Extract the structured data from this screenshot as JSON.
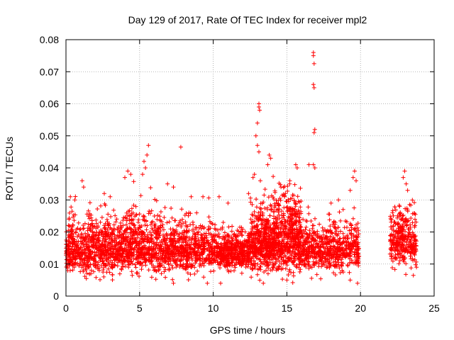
{
  "chart_data": {
    "type": "scatter",
    "title": "Day 129 of 2017, Rate Of TEC Index for receiver mpl2",
    "xlabel": "GPS time / hours",
    "ylabel": "ROTI / TECUs",
    "xlim": [
      0,
      25
    ],
    "ylim": [
      0,
      0.08
    ],
    "xticks": [
      0,
      5,
      10,
      15,
      20,
      25
    ],
    "xtick_labels": [
      "0",
      "5",
      "10",
      "15",
      "20",
      "25"
    ],
    "yticks": [
      0,
      0.01,
      0.02,
      0.03,
      0.04,
      0.05,
      0.06,
      0.07,
      0.08
    ],
    "ytick_labels": [
      "0",
      "0.01",
      "0.02",
      "0.03",
      "0.04",
      "0.05",
      "0.06",
      "0.07",
      "0.08"
    ],
    "grid": true,
    "marker": "+",
    "marker_color": "#ff0000",
    "data_gap_hours": [
      19.9,
      22.0
    ],
    "density_profile": {
      "segments": [
        {
          "x_range": [
            0.0,
            4.0
          ],
          "median": 0.014,
          "spread": 0.006,
          "count": 800
        },
        {
          "x_range": [
            4.0,
            6.5
          ],
          "median": 0.015,
          "spread": 0.007,
          "count": 500
        },
        {
          "x_range": [
            6.5,
            10.5
          ],
          "median": 0.014,
          "spread": 0.005,
          "count": 700
        },
        {
          "x_range": [
            10.5,
            12.5
          ],
          "median": 0.013,
          "spread": 0.004,
          "count": 450
        },
        {
          "x_range": [
            12.5,
            14.0
          ],
          "median": 0.016,
          "spread": 0.007,
          "count": 450
        },
        {
          "x_range": [
            14.0,
            16.0
          ],
          "median": 0.017,
          "spread": 0.008,
          "count": 600
        },
        {
          "x_range": [
            16.0,
            19.9
          ],
          "median": 0.014,
          "spread": 0.005,
          "count": 650
        },
        {
          "x_range": [
            22.0,
            23.8
          ],
          "median": 0.017,
          "spread": 0.006,
          "count": 350
        }
      ]
    },
    "notable_points": [
      {
        "x": 16.8,
        "y": 0.076
      },
      {
        "x": 16.8,
        "y": 0.075
      },
      {
        "x": 16.85,
        "y": 0.0725
      },
      {
        "x": 16.8,
        "y": 0.066
      },
      {
        "x": 16.85,
        "y": 0.065
      },
      {
        "x": 16.9,
        "y": 0.052
      },
      {
        "x": 16.85,
        "y": 0.051
      },
      {
        "x": 16.8,
        "y": 0.041
      },
      {
        "x": 16.9,
        "y": 0.04
      },
      {
        "x": 16.5,
        "y": 0.041
      },
      {
        "x": 13.1,
        "y": 0.06
      },
      {
        "x": 13.1,
        "y": 0.059
      },
      {
        "x": 13.15,
        "y": 0.058
      },
      {
        "x": 13.0,
        "y": 0.054
      },
      {
        "x": 12.9,
        "y": 0.05
      },
      {
        "x": 13.0,
        "y": 0.047
      },
      {
        "x": 13.1,
        "y": 0.045
      },
      {
        "x": 13.8,
        "y": 0.044
      },
      {
        "x": 13.9,
        "y": 0.043
      },
      {
        "x": 13.7,
        "y": 0.041
      },
      {
        "x": 15.6,
        "y": 0.041
      },
      {
        "x": 15.7,
        "y": 0.04
      },
      {
        "x": 12.8,
        "y": 0.038
      },
      {
        "x": 12.7,
        "y": 0.037
      },
      {
        "x": 13.2,
        "y": 0.036
      },
      {
        "x": 5.6,
        "y": 0.047
      },
      {
        "x": 5.5,
        "y": 0.044
      },
      {
        "x": 5.3,
        "y": 0.042
      },
      {
        "x": 5.4,
        "y": 0.04
      },
      {
        "x": 5.2,
        "y": 0.038
      },
      {
        "x": 7.8,
        "y": 0.0465
      },
      {
        "x": 4.2,
        "y": 0.039
      },
      {
        "x": 4.4,
        "y": 0.038
      },
      {
        "x": 4.0,
        "y": 0.037
      },
      {
        "x": 19.6,
        "y": 0.039
      },
      {
        "x": 19.5,
        "y": 0.037
      },
      {
        "x": 19.7,
        "y": 0.036
      },
      {
        "x": 23.0,
        "y": 0.039
      },
      {
        "x": 22.9,
        "y": 0.037
      },
      {
        "x": 23.1,
        "y": 0.035
      },
      {
        "x": 23.2,
        "y": 0.033
      },
      {
        "x": 1.1,
        "y": 0.036
      },
      {
        "x": 1.2,
        "y": 0.034
      },
      {
        "x": 0.3,
        "y": 0.031
      },
      {
        "x": 0.6,
        "y": 0.03
      },
      {
        "x": 2.6,
        "y": 0.032
      },
      {
        "x": 3.0,
        "y": 0.031
      },
      {
        "x": 6.9,
        "y": 0.035
      },
      {
        "x": 7.3,
        "y": 0.034
      },
      {
        "x": 8.5,
        "y": 0.031
      },
      {
        "x": 9.3,
        "y": 0.031
      },
      {
        "x": 10.4,
        "y": 0.031
      },
      {
        "x": 11.0,
        "y": 0.029
      },
      {
        "x": 12.4,
        "y": 0.032
      },
      {
        "x": 14.6,
        "y": 0.034
      },
      {
        "x": 14.9,
        "y": 0.032
      },
      {
        "x": 15.2,
        "y": 0.036
      },
      {
        "x": 18.0,
        "y": 0.029
      },
      {
        "x": 18.5,
        "y": 0.03
      },
      {
        "x": 19.3,
        "y": 0.033
      },
      {
        "x": 7.3,
        "y": 0.004
      },
      {
        "x": 9.6,
        "y": 0.004
      },
      {
        "x": 10.5,
        "y": 0.004
      },
      {
        "x": 13.4,
        "y": 0.004
      },
      {
        "x": 15.0,
        "y": 0.005
      },
      {
        "x": 19.3,
        "y": 0.005
      },
      {
        "x": 19.8,
        "y": 0.004
      },
      {
        "x": 23.8,
        "y": 0.009
      }
    ]
  }
}
